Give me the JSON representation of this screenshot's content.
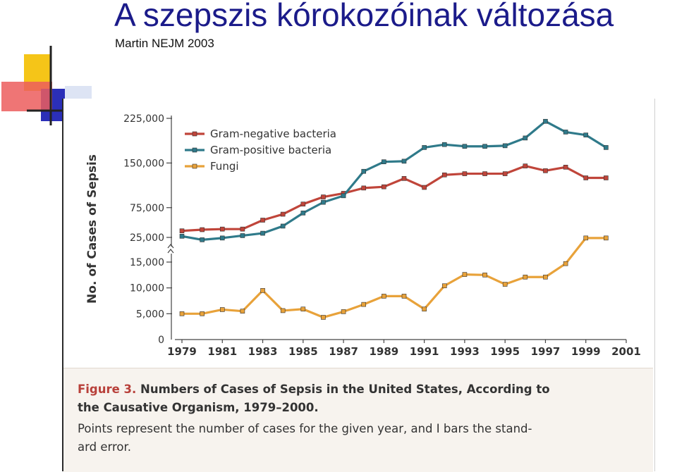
{
  "slide": {
    "title": "A szepszis kórokozóinak változása",
    "subtitle": "Martin NEJM 2003"
  },
  "caption": {
    "figure_label": "Figure 3.",
    "line1_rest": " Numbers of Cases of Sepsis in the United States, According to",
    "line2": "the Causative Organism, 1979–2000.",
    "line3": "Points represent the number of cases for the given year, and I bars the stand-",
    "line4": "ard error."
  },
  "colors": {
    "title": "#1b1b8a",
    "gram_negative": "#c0453a",
    "gram_positive": "#2f7a8a",
    "fungi": "#e8a23a",
    "axis": "#444444",
    "figure_label": "#b8403a",
    "caption_bg": "#f7f3ee"
  },
  "chart_data": {
    "type": "line",
    "ylabel": "No. of Cases of Sepsis",
    "xlabel": "",
    "y_axis_break": "between 15,000 and 25,000",
    "yticks": [
      {
        "label": "225,000",
        "value": 225000
      },
      {
        "label": "150,000",
        "value": 150000
      },
      {
        "label": "75,000",
        "value": 75000
      },
      {
        "label": "25,000",
        "value": 25000
      },
      {
        "label": "15,000",
        "value": 15000
      },
      {
        "label": "10,000",
        "value": 10000
      },
      {
        "label": "5,000",
        "value": 5000
      },
      {
        "label": "0",
        "value": 0
      }
    ],
    "xticks": [
      "1979",
      "1981",
      "1983",
      "1985",
      "1987",
      "1989",
      "1991",
      "1993",
      "1995",
      "1997",
      "1999",
      "2001"
    ],
    "xlim": [
      1979,
      2001
    ],
    "legend_position": "top-left",
    "error_bars": true,
    "series": [
      {
        "name": "Gram-negative bacteria",
        "color": "#c0453a",
        "x": [
          1979,
          1980,
          1981,
          1982,
          1983,
          1984,
          1985,
          1986,
          1987,
          1988,
          1989,
          1990,
          1991,
          1992,
          1993,
          1994,
          1995,
          1996,
          1997,
          1998,
          1999,
          2000
        ],
        "values": [
          36000,
          38000,
          39000,
          39000,
          54000,
          64000,
          81000,
          93000,
          99000,
          108000,
          110000,
          124000,
          109000,
          130000,
          132000,
          132000,
          132000,
          145000,
          137000,
          143000,
          125000,
          125000
        ],
        "errors": [
          0,
          0,
          0,
          0,
          0,
          0,
          0,
          0,
          0,
          0,
          0,
          0,
          0,
          0,
          0,
          0,
          0,
          0,
          0,
          0,
          0,
          0
        ]
      },
      {
        "name": "Gram-positive bacteria",
        "color": "#2f7a8a",
        "x": [
          1979,
          1980,
          1981,
          1982,
          1983,
          1984,
          1985,
          1986,
          1987,
          1988,
          1989,
          1990,
          1991,
          1992,
          1993,
          1994,
          1995,
          1996,
          1997,
          1998,
          1999,
          2000
        ],
        "values": [
          27000,
          21000,
          24000,
          28000,
          32000,
          44000,
          66000,
          84000,
          95000,
          136000,
          152000,
          153000,
          176000,
          181000,
          178000,
          178000,
          179000,
          192000,
          220000,
          202000,
          197000,
          176000
        ],
        "errors": [
          0,
          0,
          0,
          0,
          0,
          0,
          0,
          0,
          0,
          0,
          0,
          0,
          0,
          0,
          0,
          0,
          0,
          0,
          0,
          0,
          0,
          0
        ]
      },
      {
        "name": "Fungi",
        "color": "#e8a23a",
        "x": [
          1979,
          1980,
          1981,
          1982,
          1983,
          1984,
          1985,
          1986,
          1987,
          1988,
          1989,
          1990,
          1991,
          1992,
          1993,
          1994,
          1995,
          1996,
          1997,
          1998,
          1999,
          2000
        ],
        "values": [
          5000,
          5000,
          5800,
          5500,
          9500,
          5600,
          5900,
          4300,
          5400,
          6800,
          8400,
          8400,
          5900,
          10400,
          12600,
          12500,
          10700,
          12100,
          12100,
          14700,
          24000,
          24000
        ],
        "errors": [
          0,
          0,
          0,
          0,
          0,
          0,
          0,
          0,
          0,
          0,
          0,
          0,
          0,
          0,
          0,
          0,
          0,
          0,
          0,
          0,
          0,
          0
        ]
      }
    ]
  }
}
